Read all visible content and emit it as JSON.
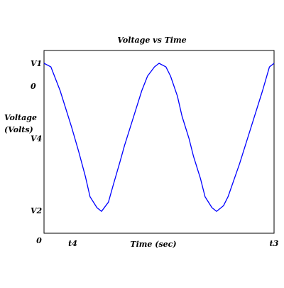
{
  "chart_data": {
    "type": "line",
    "title": "Voltage vs Time",
    "xlabel": "Time (sec)",
    "ylabel_line1": "Voltage",
    "ylabel_line2": "(Volts)",
    "xlim": [
      0,
      1
    ],
    "ylim": [
      0,
      1
    ],
    "x_ticks": [
      {
        "label": "0",
        "value": 0.0
      },
      {
        "label": "t4",
        "value": 0.125
      },
      {
        "label": "t3",
        "value": 1.0
      }
    ],
    "y_ticks": [
      {
        "label": "V1",
        "value": 0.93
      },
      {
        "label": "0",
        "value": 0.805
      },
      {
        "label": "V4",
        "value": 0.52
      },
      {
        "label": "V2",
        "value": 0.125
      }
    ],
    "series": [
      {
        "color": "#0000ff",
        "x": [
          0.0,
          0.03,
          0.07,
          0.12,
          0.15,
          0.18,
          0.2,
          0.23,
          0.25,
          0.28,
          0.3,
          0.33,
          0.35,
          0.375,
          0.4,
          0.425,
          0.45,
          0.48,
          0.5,
          0.53,
          0.55,
          0.58,
          0.6,
          0.63,
          0.65,
          0.68,
          0.7,
          0.73,
          0.75,
          0.78,
          0.8,
          0.85,
          0.9,
          0.95,
          0.98,
          1.0
        ],
        "y": [
          0.93,
          0.91,
          0.78,
          0.58,
          0.45,
          0.31,
          0.2,
          0.14,
          0.12,
          0.17,
          0.26,
          0.39,
          0.48,
          0.58,
          0.68,
          0.78,
          0.86,
          0.91,
          0.93,
          0.91,
          0.86,
          0.75,
          0.64,
          0.52,
          0.42,
          0.3,
          0.2,
          0.14,
          0.12,
          0.15,
          0.2,
          0.38,
          0.58,
          0.78,
          0.91,
          0.93
        ]
      }
    ]
  }
}
